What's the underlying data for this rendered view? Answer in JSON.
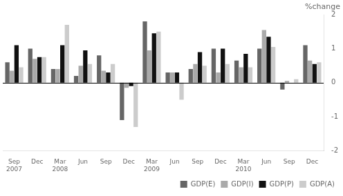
{
  "chart_data": {
    "type": "bar",
    "title": "%change",
    "categories": [
      "Sep\n2007",
      "Dec",
      "Mar\n2008",
      "Jun",
      "Sep",
      "Dec",
      "Mar\n2009",
      "Jun",
      "Sep",
      "Dec",
      "Mar\n2010",
      "Jun",
      "Sep",
      "Dec"
    ],
    "series": [
      {
        "name": "GDP(E)",
        "color": "#666666",
        "values": [
          0.6,
          1.0,
          0.4,
          0.2,
          0.8,
          -1.1,
          1.8,
          0.3,
          0.4,
          1.0,
          0.65,
          1.0,
          -0.2,
          1.1
        ]
      },
      {
        "name": "GDP(I)",
        "color": "#aaaaaa",
        "values": [
          0.35,
          0.7,
          0.4,
          0.5,
          0.35,
          -0.15,
          0.95,
          0.3,
          0.55,
          0.3,
          0.45,
          1.55,
          0.05,
          0.65
        ]
      },
      {
        "name": "GDP(P)",
        "color": "#111111",
        "values": [
          1.1,
          0.75,
          1.1,
          0.95,
          0.3,
          -0.1,
          1.45,
          0.3,
          0.9,
          1.0,
          0.85,
          1.35,
          0.0,
          0.55
        ]
      },
      {
        "name": "GDP(A)",
        "color": "#cccccc",
        "values": [
          0.45,
          0.75,
          1.7,
          0.55,
          0.55,
          -1.3,
          1.5,
          -0.5,
          0.5,
          0.55,
          0.45,
          1.05,
          0.1,
          0.6
        ]
      }
    ],
    "ylim": [
      -2,
      2
    ],
    "yticks": [
      -2,
      -1,
      0,
      1,
      2
    ],
    "grid": false,
    "legend": "lower right"
  }
}
